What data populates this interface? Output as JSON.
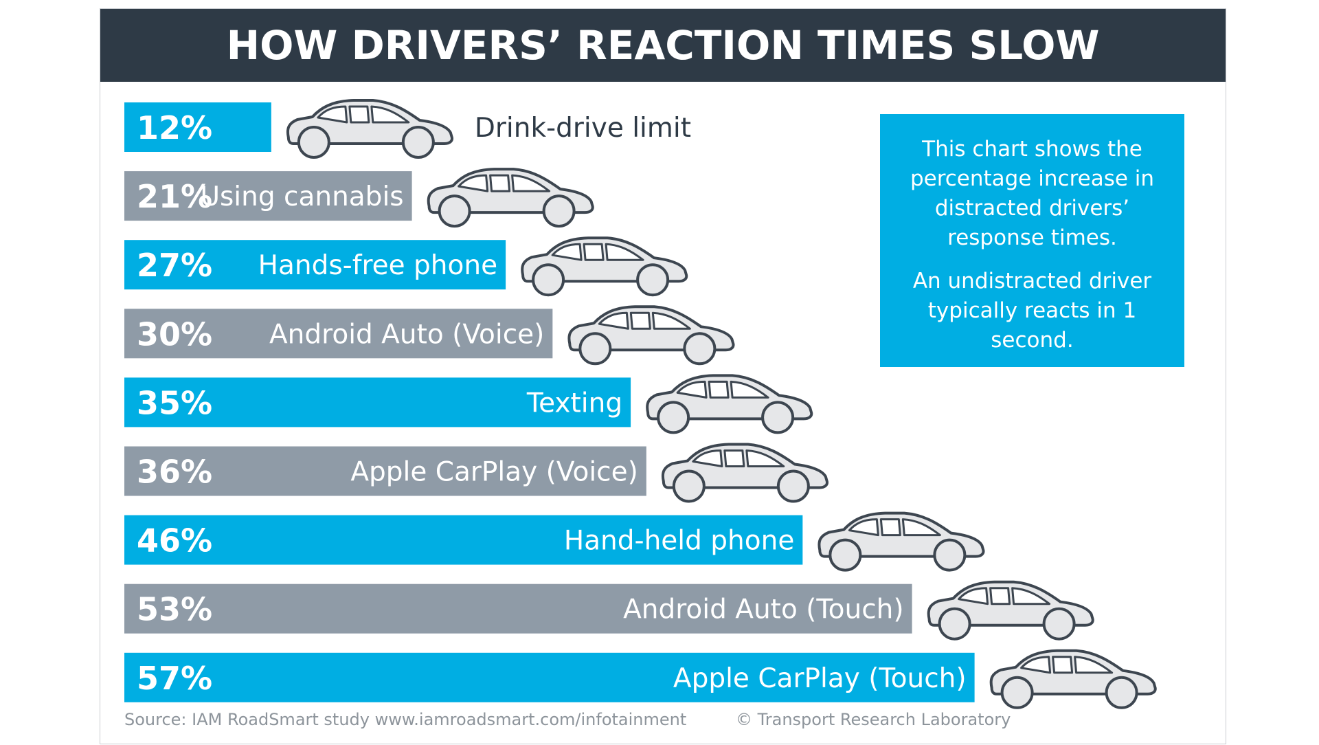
{
  "title": "HOW DRIVERS’ REACTION TIMES SLOW",
  "note": {
    "line1": "This chart shows the percentage increase in distracted drivers’ response times.",
    "line2": "An undistracted driver typically reacts in 1 second."
  },
  "footer": {
    "source": "Source: IAM RoadSmart study www.iamroadsmart.com/infotainment",
    "copyright": "© Transport Research Laboratory"
  },
  "colors": {
    "blue": "#00aee3",
    "grey": "#8f9ba7",
    "header": "#2e3a46",
    "car_fill": "#e6e7e9",
    "car_stroke": "#3d4650"
  },
  "chart_data": {
    "type": "bar",
    "orientation": "horizontal",
    "title": "HOW DRIVERS’ REACTION TIMES SLOW",
    "unit": "%",
    "categories": [
      "Drink-drive limit",
      "Using cannabis",
      "Hands-free phone",
      "Android Auto (Voice)",
      "Texting",
      "Apple CarPlay (Voice)",
      "Hand-held phone",
      "Android Auto (Touch)",
      "Apple CarPlay (Touch)"
    ],
    "values": [
      12,
      21,
      27,
      30,
      35,
      36,
      46,
      53,
      57
    ],
    "value_labels": [
      "12%",
      "21%",
      "27%",
      "30%",
      "35%",
      "36%",
      "46%",
      "53%",
      "57%"
    ],
    "bar_colors": [
      "blue",
      "grey",
      "blue",
      "grey",
      "blue",
      "grey",
      "blue",
      "grey",
      "blue"
    ],
    "label_position": [
      "outside",
      "inside",
      "inside",
      "inside",
      "inside",
      "inside",
      "inside",
      "inside",
      "inside"
    ],
    "icon": "car-icon"
  }
}
